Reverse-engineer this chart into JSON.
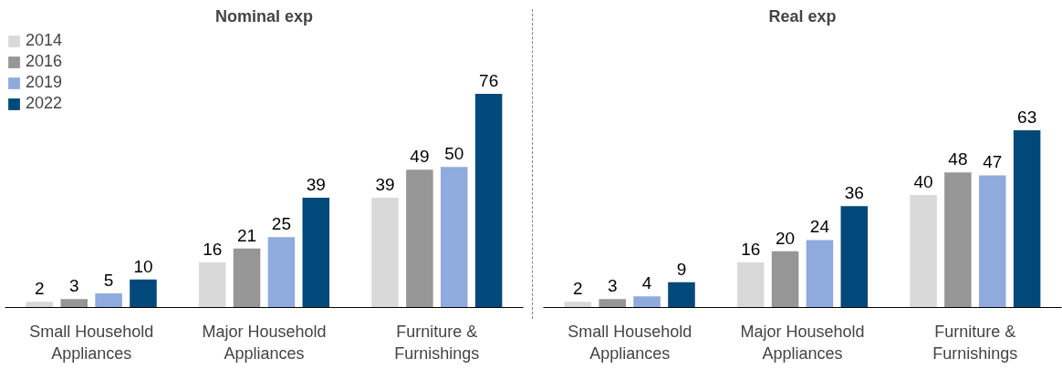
{
  "chart_data": [
    {
      "type": "bar",
      "title": "Nominal exp",
      "categories": [
        "Small Household Appliances",
        "Major Household Appliances",
        "Furniture & Furnishings"
      ],
      "data_labels": true,
      "legend": "top left",
      "grid": false,
      "series": [
        {
          "name": "2014",
          "color": "#d9d9d9",
          "values": [
            2,
            16,
            39
          ]
        },
        {
          "name": "2016",
          "color": "#969696",
          "values": [
            3,
            21,
            49
          ]
        },
        {
          "name": "2019",
          "color": "#8faadc",
          "values": [
            5,
            25,
            50
          ]
        },
        {
          "name": "2022",
          "color": "#00497a",
          "values": [
            10,
            39,
            76
          ]
        }
      ]
    },
    {
      "type": "bar",
      "title": "Real exp",
      "categories": [
        "Small Household Appliances",
        "Major Household Appliances",
        "Furniture & Furnishings"
      ],
      "data_labels": true,
      "grid": false,
      "series": [
        {
          "color": "#d9d9d9",
          "values": [
            2,
            16,
            40
          ]
        },
        {
          "color": "#969696",
          "values": [
            3,
            20,
            48
          ]
        },
        {
          "color": "#8faadc",
          "values": [
            4,
            24,
            47
          ]
        },
        {
          "color": "#00497a",
          "values": [
            9,
            36,
            63
          ]
        }
      ]
    }
  ]
}
